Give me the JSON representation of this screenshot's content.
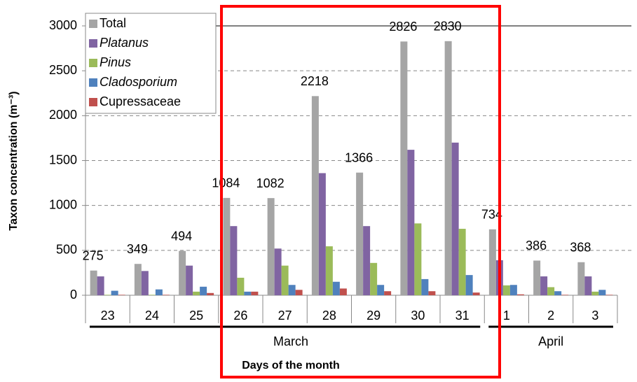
{
  "chart_data": {
    "type": "bar",
    "categories": [
      "23",
      "24",
      "25",
      "26",
      "27",
      "28",
      "29",
      "30",
      "31",
      "1",
      "2",
      "3"
    ],
    "group_labels": [
      "March",
      "April"
    ],
    "xlabel": "Days of the month",
    "ylabel": "Taxon concentration (m⁻³)",
    "ylim": [
      0,
      3000
    ],
    "yticks": [
      0,
      500,
      1000,
      1500,
      2000,
      2500,
      3000
    ],
    "grid": true,
    "legend": "top-left",
    "series": [
      {
        "name": "Total",
        "color": "#a5a5a5",
        "values": [
          275,
          349,
          494,
          1084,
          1082,
          2218,
          1366,
          2826,
          2830,
          734,
          386,
          368
        ]
      },
      {
        "name": "Platanus",
        "color": "#8064a2",
        "values": [
          210,
          270,
          330,
          770,
          520,
          1360,
          770,
          1620,
          1700,
          390,
          210,
          210
        ]
      },
      {
        "name": "Pinus",
        "color": "#9bbb59",
        "values": [
          5,
          5,
          40,
          195,
          330,
          545,
          360,
          800,
          740,
          110,
          90,
          40
        ]
      },
      {
        "name": "Cladosporium",
        "color": "#4f81bd",
        "values": [
          50,
          65,
          95,
          40,
          115,
          150,
          115,
          180,
          225,
          115,
          45,
          60
        ]
      },
      {
        "name": "Cupressaceae",
        "color": "#c0504d",
        "values": [
          5,
          5,
          25,
          40,
          60,
          75,
          45,
          45,
          30,
          10,
          5,
          5
        ]
      }
    ]
  }
}
